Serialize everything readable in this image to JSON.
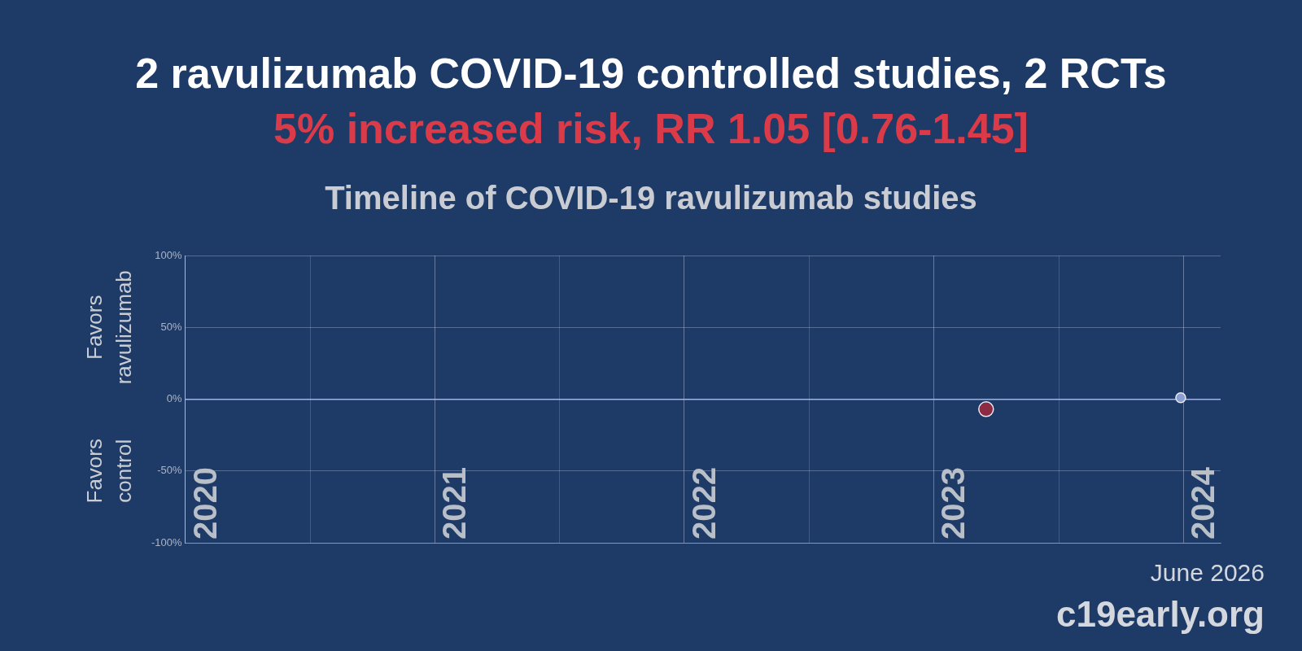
{
  "chart_data": {
    "type": "scatter",
    "title": "2 ravulizumab COVID-19 controlled studies, 2 RCTs",
    "subtitle": "5% increased risk, RR 1.05 [0.76-1.45]",
    "chart_title": "Timeline of COVID-19 ravulizumab studies",
    "y_labels": [
      "Favors ravulizumab",
      "Favors control"
    ],
    "x": [
      2023.21,
      2023.99
    ],
    "values": [
      -7,
      1
    ],
    "colors": [
      "#8e2b44",
      "#8c9fd0"
    ],
    "xlim": [
      2020,
      2024.15
    ],
    "xticks": [
      2020,
      2021,
      2022,
      2023,
      2024
    ],
    "ylim": [
      -100,
      100
    ],
    "yticks": [
      {
        "value": -100,
        "label": "-100%"
      },
      {
        "value": -50,
        "label": "-50%"
      },
      {
        "value": 0,
        "label": "0%"
      },
      {
        "value": 50,
        "label": "50%"
      },
      {
        "value": 100,
        "label": "100%"
      }
    ],
    "grid": true,
    "annotations": [
      "June 2026",
      "c19early.org"
    ]
  }
}
